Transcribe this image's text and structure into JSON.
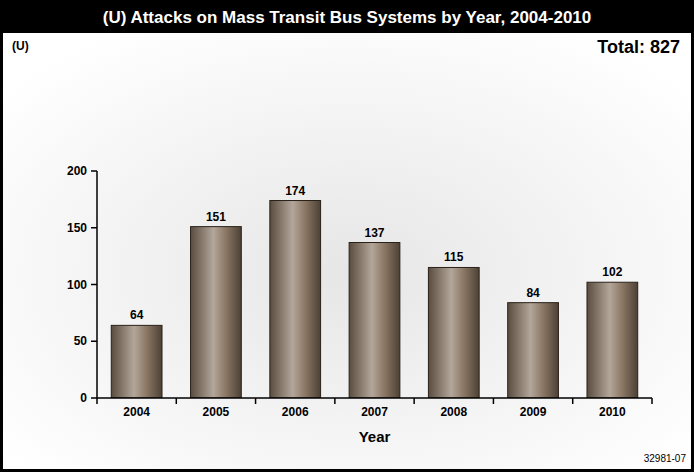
{
  "chart_data": {
    "type": "bar",
    "title": "(U) Attacks on Mass Transit Bus Systems by Year, 2004-2010",
    "ylabel": "(U)",
    "xlabel": "Year",
    "annotations": [
      "Total: 827",
      "32981-07"
    ],
    "categories": [
      "2004",
      "2005",
      "2006",
      "2007",
      "2008",
      "2009",
      "2010"
    ],
    "values": [
      64,
      151,
      174,
      137,
      115,
      84,
      102
    ],
    "color": "#8a7663",
    "ylim": [
      0,
      200
    ],
    "yticks": [
      0,
      50,
      100,
      150,
      200
    ],
    "grid": false,
    "data_labels": true
  }
}
